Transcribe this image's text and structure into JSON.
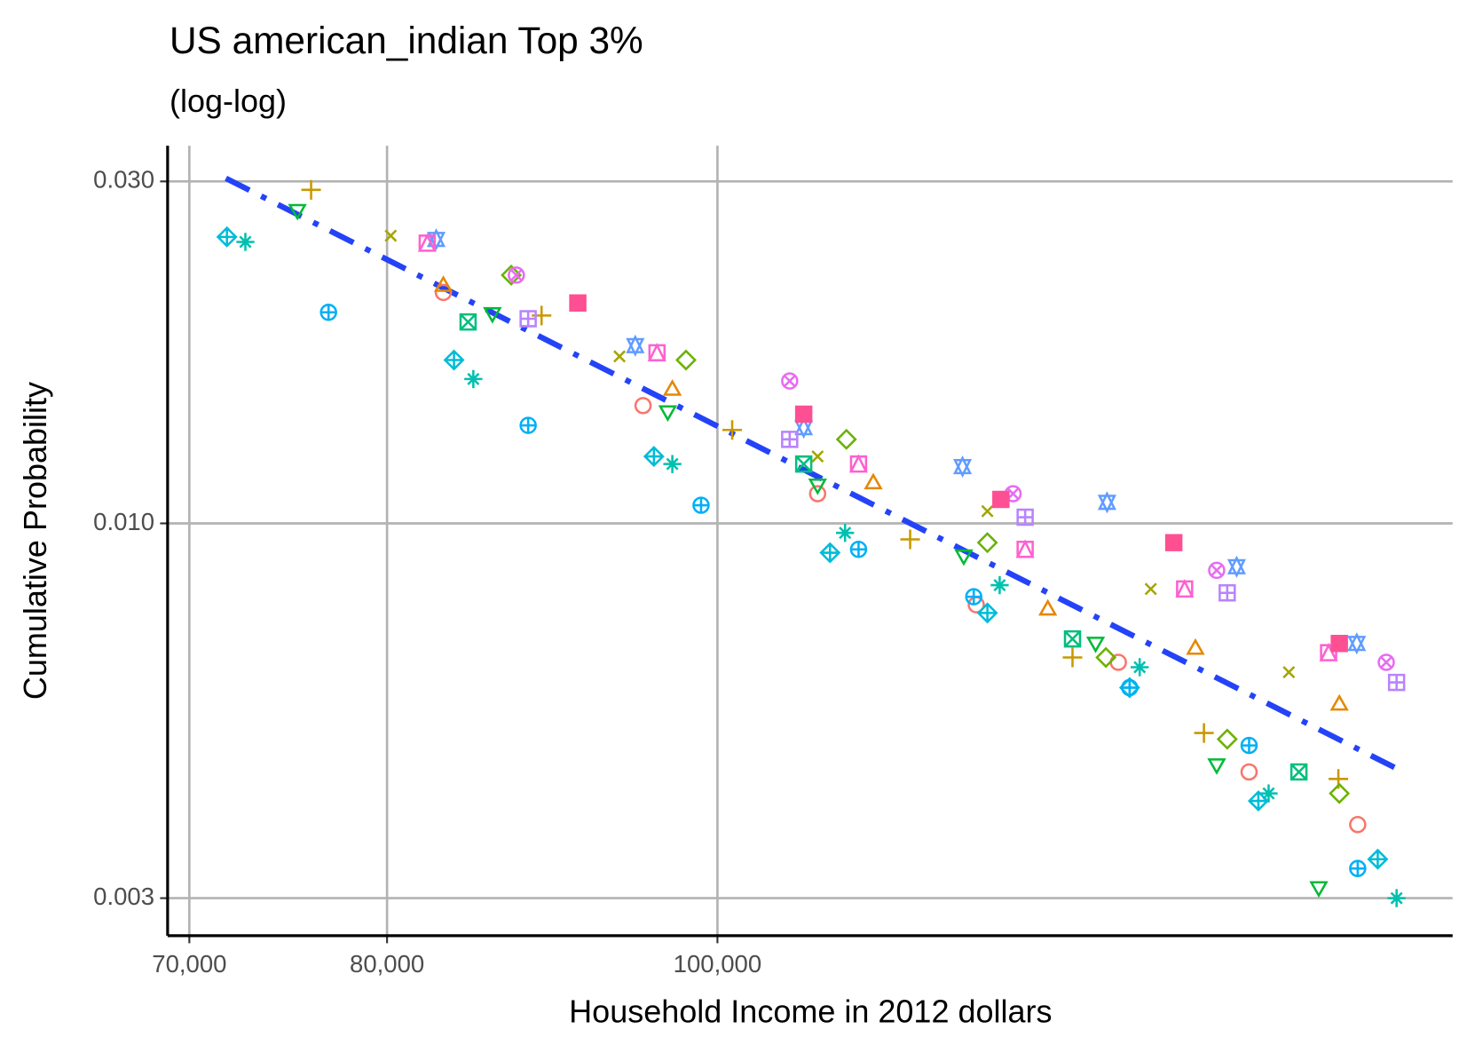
{
  "chart_data": {
    "type": "scatter",
    "title": "US american_indian Top 3%",
    "subtitle": "(log-log)",
    "x_label": "Household Income in 2012 dollars",
    "y_label": "Cumulative Probability",
    "xscale": "log",
    "yscale": "log",
    "grid": true,
    "xlim": [
      68980,
      164300
    ],
    "ylim": [
      0.002659,
      0.03364
    ],
    "xticks": [
      {
        "value": 70000,
        "label": "70,000"
      },
      {
        "value": 80000,
        "label": "80,000"
      },
      {
        "value": 100000,
        "label": "100,000"
      }
    ],
    "yticks": [
      {
        "value": 0.03,
        "label": "0.030"
      },
      {
        "value": 0.01,
        "label": "0.010"
      },
      {
        "value": 0.003,
        "label": "0.003"
      }
    ],
    "series": [
      {
        "shape": "circle",
        "color": "#F8766D",
        "x": [
          83100,
          95100,
          107000,
          119100,
          131100,
          143200,
          154100
        ],
        "values": [
          0.021,
          0.0146,
          0.011,
          0.0077,
          0.0064,
          0.0045,
          0.0038
        ]
      },
      {
        "shape": "triangle",
        "color": "#E58700",
        "x": [
          83100,
          97000,
          111100,
          125000,
          138100,
          152200
        ],
        "values": [
          0.0215,
          0.0154,
          0.0114,
          0.0076,
          0.0067,
          0.0056
        ]
      },
      {
        "shape": "plus",
        "color": "#C99800",
        "x": [
          76000,
          88800,
          101000,
          113900,
          127100,
          138900,
          152100
        ],
        "values": [
          0.0292,
          0.0195,
          0.0135,
          0.0095,
          0.0065,
          0.0051,
          0.0044
        ]
      },
      {
        "shape": "cross",
        "color": "#A3A500",
        "x": [
          80200,
          93600,
          107000,
          120000,
          134000,
          147100
        ],
        "values": [
          0.0252,
          0.0171,
          0.0124,
          0.0104,
          0.0081,
          0.0062
        ]
      },
      {
        "shape": "diamond",
        "color": "#6BB100",
        "x": [
          87000,
          97900,
          109100,
          120000,
          130000,
          141100,
          152200
        ],
        "values": [
          0.0222,
          0.0169,
          0.0131,
          0.0094,
          0.0065,
          0.005,
          0.0042
        ]
      },
      {
        "shape": "triangle-down",
        "color": "#00BA38",
        "x": [
          75300,
          85900,
          96700,
          107000,
          118100,
          129100,
          140100,
          150100
        ],
        "values": [
          0.0273,
          0.0196,
          0.0143,
          0.0113,
          0.009,
          0.0068,
          0.0046,
          0.0031
        ]
      },
      {
        "shape": "square-cross",
        "color": "#00BF7D",
        "x": [
          84500,
          106000,
          127100,
          148100
        ],
        "values": [
          0.0191,
          0.0121,
          0.0069,
          0.0045
        ]
      },
      {
        "shape": "asterisk",
        "color": "#00C0AF",
        "x": [
          72700,
          84800,
          97000,
          109000,
          121000,
          133000,
          145100,
          158200
        ],
        "values": [
          0.0247,
          0.0159,
          0.0121,
          0.0097,
          0.0082,
          0.0063,
          0.0042,
          0.003
        ]
      },
      {
        "shape": "diamond-plus",
        "color": "#00BCD8",
        "x": [
          71800,
          83700,
          95800,
          107900,
          120000,
          132100,
          144100,
          156200
        ],
        "values": [
          0.0251,
          0.0169,
          0.0124,
          0.0091,
          0.0075,
          0.0059,
          0.0041,
          0.0034
        ]
      },
      {
        "shape": "circle-plus",
        "color": "#00B0F6",
        "x": [
          76900,
          88000,
          98900,
          110000,
          118900,
          132100,
          143200,
          154100
        ],
        "values": [
          0.0197,
          0.0137,
          0.0106,
          0.0092,
          0.0079,
          0.0059,
          0.0049,
          0.0033
        ]
      },
      {
        "shape": "star",
        "color": "#619CFF",
        "x": [
          82700,
          94600,
          106000,
          118000,
          130100,
          142000,
          154000
        ],
        "values": [
          0.0249,
          0.0177,
          0.0136,
          0.012,
          0.0107,
          0.0087,
          0.0068
        ]
      },
      {
        "shape": "square-plus",
        "color": "#B983FF",
        "x": [
          88000,
          105000,
          123100,
          141100,
          158200
        ],
        "values": [
          0.0193,
          0.0131,
          0.0102,
          0.008,
          0.006
        ]
      },
      {
        "shape": "circle-cross",
        "color": "#E76BF3",
        "x": [
          87300,
          105000,
          122100,
          140100,
          157100
        ],
        "values": [
          0.0222,
          0.0158,
          0.011,
          0.0086,
          0.0064
        ]
      },
      {
        "shape": "square-triangle",
        "color": "#FD61D1",
        "x": [
          82200,
          96000,
          110000,
          123100,
          137100,
          151100
        ],
        "values": [
          0.0246,
          0.0173,
          0.0121,
          0.0092,
          0.0081,
          0.0066
        ]
      },
      {
        "shape": "square-filled",
        "color": "#FF4F93",
        "x": [
          91000,
          106000,
          121100,
          136100,
          152200
        ],
        "values": [
          0.0203,
          0.0142,
          0.0108,
          0.0094,
          0.0068
        ]
      }
    ],
    "trend": {
      "color": "#2443F7",
      "x": [
        71750,
        158200
      ],
      "values": [
        0.0303,
        0.00455
      ]
    }
  }
}
